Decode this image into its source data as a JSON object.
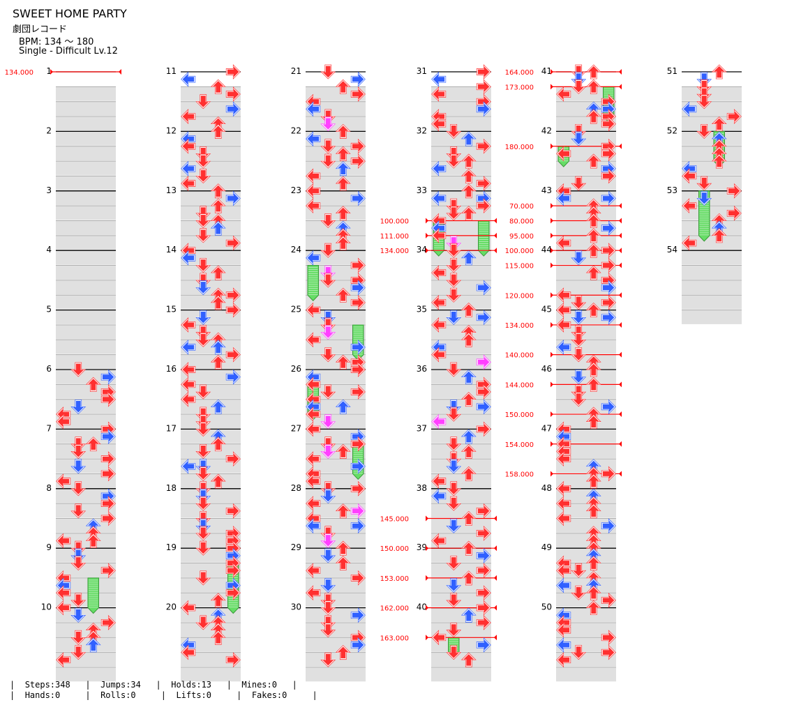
{
  "song": {
    "title": "SWEET HOME PARTY",
    "artist": "劇団レコード",
    "bpm_label": "BPM: 134 ～ 180",
    "difficulty_label": "Single - Difficult Lv.12"
  },
  "colors": {
    "red_arrow": "#ff3030",
    "blue_arrow": "#3060ff",
    "magenta_arrow": "#ff40ff",
    "purple_arrow": "#a040ff",
    "hold_green": "#66dd66",
    "bpm_marker": "#ff0000",
    "measure_band": "#e0e0e0"
  },
  "measures": [
    "1",
    "2",
    "3",
    "4",
    "5",
    "6",
    "7",
    "8",
    "9",
    "10",
    "11",
    "12",
    "13",
    "14",
    "15",
    "16",
    "17",
    "18",
    "19",
    "20",
    "21",
    "22",
    "23",
    "24",
    "25",
    "26",
    "27",
    "28",
    "29",
    "30",
    "31",
    "32",
    "33",
    "34",
    "35",
    "36",
    "37",
    "38",
    "39",
    "40",
    "41",
    "42",
    "43",
    "44",
    "45",
    "46",
    "47",
    "48",
    "49",
    "50",
    "51",
    "52",
    "53",
    "54"
  ],
  "bpm_changes": [
    {
      "label": "134.000",
      "measure": 1.0
    },
    {
      "label": "111.000",
      "measure": 33.75
    },
    {
      "label": "100.000",
      "measure": 33.5
    },
    {
      "label": "134.000",
      "measure": 34.0
    },
    {
      "label": "145.000",
      "measure": 38.5
    },
    {
      "label": "150.000",
      "measure": 39.0
    },
    {
      "label": "153.000",
      "measure": 39.5
    },
    {
      "label": "162.000",
      "measure": 40.0
    },
    {
      "label": "163.000",
      "measure": 40.5
    },
    {
      "label": "164.000",
      "measure": 41.0
    },
    {
      "label": "173.000",
      "measure": 41.25
    },
    {
      "label": "180.000",
      "measure": 42.25
    },
    {
      "label": "70.000",
      "measure": 43.25
    },
    {
      "label": "80.000",
      "measure": 43.5
    },
    {
      "label": "95.000",
      "measure": 43.75
    },
    {
      "label": "100.000",
      "measure": 44.0
    },
    {
      "label": "115.000",
      "measure": 44.25
    },
    {
      "label": "120.000",
      "measure": 44.75
    },
    {
      "label": "134.000",
      "measure": 45.25
    },
    {
      "label": "140.000",
      "measure": 45.75
    },
    {
      "label": "144.000",
      "measure": 46.25
    },
    {
      "label": "150.000",
      "measure": 46.75
    },
    {
      "label": "154.000",
      "measure": 47.25
    },
    {
      "label": "158.000",
      "measure": 47.75
    }
  ],
  "holds": [
    {
      "measure": 9.5,
      "lane": 2,
      "length": 0.5
    },
    {
      "measure": 19.25,
      "lane": 3,
      "length": 0.75
    },
    {
      "measure": 24.25,
      "lane": 0,
      "length": 0.5
    },
    {
      "measure": 25.25,
      "lane": 3,
      "length": 0.5
    },
    {
      "measure": 26.25,
      "lane": 0,
      "length": 0.5
    },
    {
      "measure": 27.25,
      "lane": 3,
      "length": 0.5
    },
    {
      "measure": 33.5,
      "lane": 0,
      "length": 0.5
    },
    {
      "measure": 33.5,
      "lane": 3,
      "length": 0.5
    },
    {
      "measure": 40.5,
      "lane": 1,
      "length": 0.25
    },
    {
      "measure": 41.25,
      "lane": 3,
      "length": 0.5
    },
    {
      "measure": 42.25,
      "lane": 0,
      "length": 0.25
    },
    {
      "measure": 52.0,
      "lane": 2,
      "length": 0.5
    },
    {
      "measure": 53.0,
      "lane": 1,
      "length": 0.75
    }
  ],
  "stats": {
    "steps": "Steps:348",
    "jumps": "Jumps:34",
    "holds": "Holds:13",
    "mines": "Mines:0",
    "hands": "Hands:0",
    "rolls": "Rolls:0",
    "lifts": "Lifts:0",
    "fakes": "Fakes:0"
  }
}
